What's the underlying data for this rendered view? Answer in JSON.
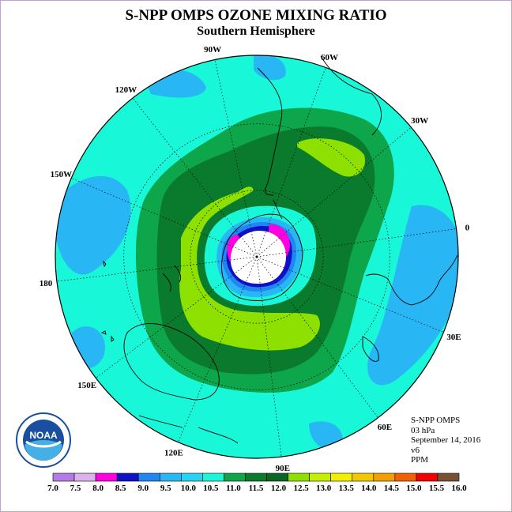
{
  "title": "S-NPP OMPS OZONE MIXING RATIO",
  "subtitle": "Southern Hemisphere",
  "map": {
    "longitude_labels": [
      "90W",
      "60W",
      "30W",
      "0",
      "30E",
      "60E",
      "90E",
      "120E",
      "150E",
      "180",
      "150W",
      "120W"
    ],
    "colors": {
      "ocean_fill": "#19f7d9",
      "level_11_0": "#0ea64a",
      "level_11_5": "#0a7a2c",
      "level_12_0": "#8de000",
      "level_10_0": "#28b6f5",
      "level_9_5": "#1f86f2",
      "level_9_0": "#1010c8",
      "level_8_0": "#ff00e0",
      "polar_night": "#ffffff"
    }
  },
  "info": {
    "product": "S-NPP OMPS",
    "level": "03 hPa",
    "date": "September 14, 2016",
    "version": "v6",
    "units": "PPM"
  },
  "logo": {
    "text": "NOAA",
    "color": "#1a4fa0"
  },
  "colorbar": {
    "labels": [
      "7.0",
      "7.5",
      "8.0",
      "8.5",
      "9.0",
      "9.5",
      "10.0",
      "10.5",
      "11.0",
      "11.5",
      "12.0",
      "12.5",
      "13.0",
      "13.5",
      "14.0",
      "14.5",
      "15.0",
      "15.5",
      "16.0"
    ],
    "colors": [
      "#b37be8",
      "#dcb2ee",
      "#ff00e0",
      "#1010c8",
      "#1f86f2",
      "#28b6f5",
      "#28d4f5",
      "#19f7d9",
      "#0ea64a",
      "#0a7a2c",
      "#0a6622",
      "#8de000",
      "#c4f000",
      "#f2f000",
      "#f2c800",
      "#f2a000",
      "#f26000",
      "#f20000",
      "#7a5033"
    ]
  }
}
